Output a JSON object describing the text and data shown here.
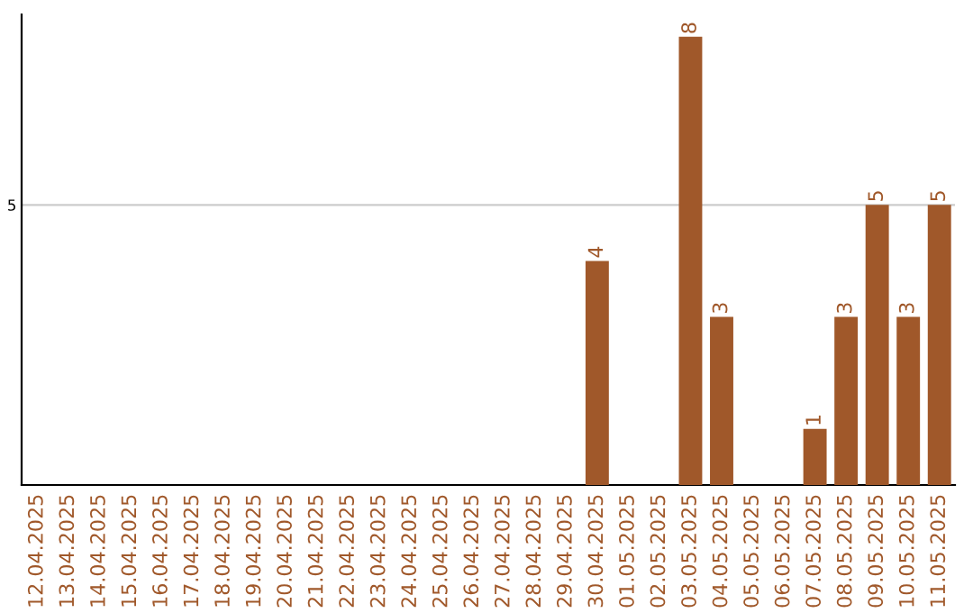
{
  "chart_data": {
    "type": "bar",
    "categories": [
      "12.04.2025",
      "13.04.2025",
      "14.04.2025",
      "15.04.2025",
      "16.04.2025",
      "17.04.2025",
      "18.04.2025",
      "19.04.2025",
      "20.04.2025",
      "21.04.2025",
      "22.04.2025",
      "23.04.2025",
      "24.04.2025",
      "25.04.2025",
      "26.04.2025",
      "27.04.2025",
      "28.04.2025",
      "29.04.2025",
      "30.04.2025",
      "01.05.2025",
      "02.05.2025",
      "03.05.2025",
      "04.05.2025",
      "05.05.2025",
      "06.05.2025",
      "07.05.2025",
      "08.05.2025",
      "09.05.2025",
      "10.05.2025",
      "11.05.2025"
    ],
    "values": [
      null,
      null,
      null,
      null,
      null,
      null,
      null,
      null,
      null,
      null,
      null,
      null,
      null,
      null,
      null,
      null,
      null,
      null,
      4,
      null,
      null,
      8,
      3,
      null,
      null,
      1,
      3,
      5,
      3,
      5
    ],
    "data_labels": true,
    "color": "#a0582a",
    "ylim": [
      0,
      8.4
    ],
    "yticks": [
      5
    ],
    "grid": "y"
  }
}
